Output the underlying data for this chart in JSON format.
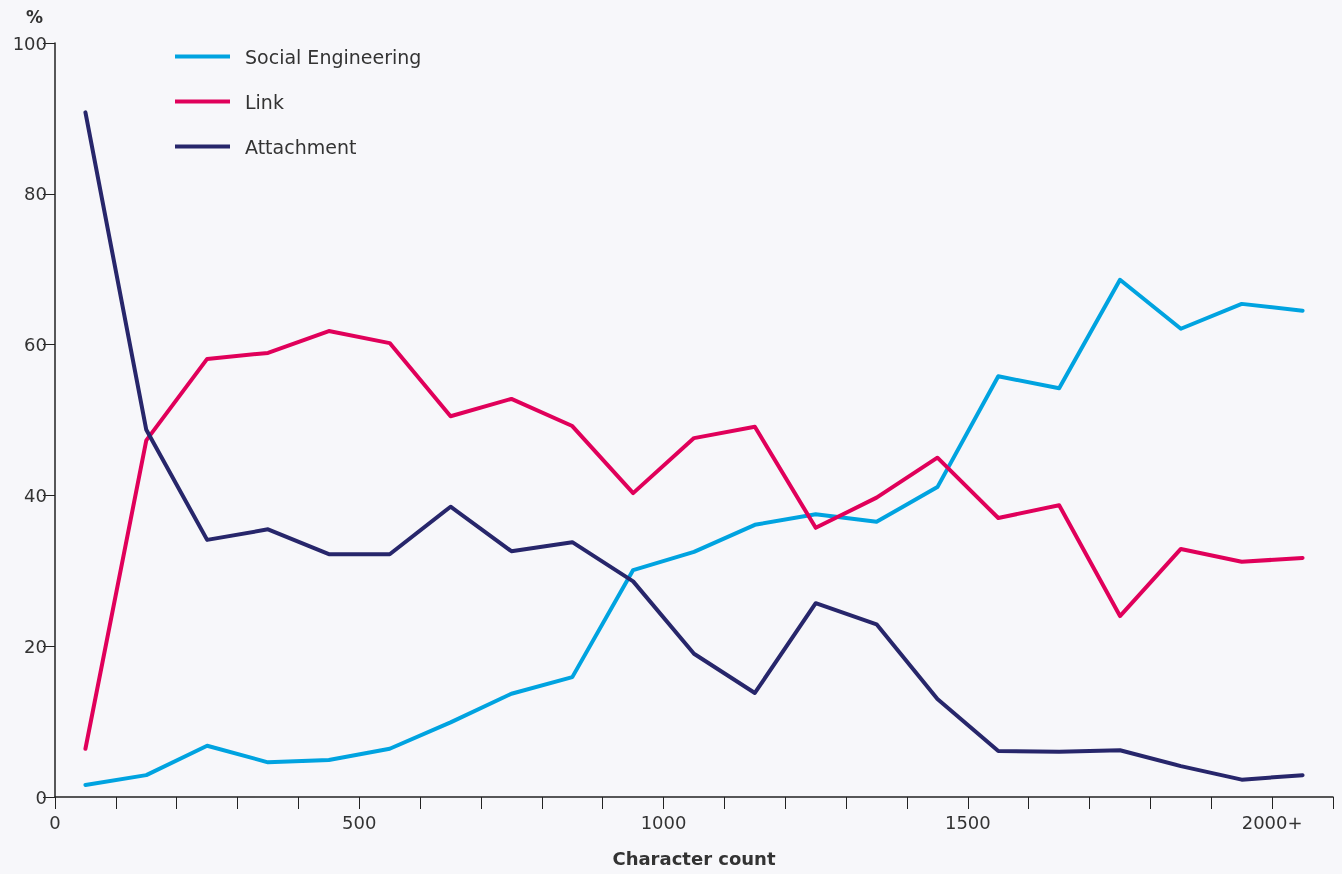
{
  "chart_data": {
    "type": "line",
    "xlabel": "Character count",
    "ylabel": "%",
    "x": [
      50,
      150,
      250,
      350,
      450,
      550,
      650,
      750,
      850,
      950,
      1050,
      1150,
      1250,
      1350,
      1450,
      1550,
      1650,
      1750,
      1850,
      1950,
      2050
    ],
    "series": [
      {
        "name": "Social Engineering",
        "color": "#00a3e0",
        "values": [
          1.6,
          2.9,
          6.8,
          4.6,
          4.9,
          6.4,
          9.9,
          13.7,
          15.9,
          30.1,
          32.5,
          36.1,
          37.5,
          36.5,
          41.1,
          55.8,
          54.2,
          68.6,
          62.1,
          65.4,
          64.5
        ]
      },
      {
        "name": "Link",
        "color": "#e0005a",
        "values": [
          6.4,
          47.3,
          58.1,
          58.9,
          61.8,
          60.2,
          50.5,
          52.8,
          49.2,
          40.3,
          47.6,
          49.1,
          35.7,
          39.7,
          45.0,
          37.0,
          38.7,
          24.0,
          32.9,
          31.2,
          31.7
        ]
      },
      {
        "name": "Attachment",
        "color": "#27266b",
        "values": [
          90.8,
          48.7,
          34.1,
          35.5,
          32.2,
          32.2,
          38.5,
          32.6,
          33.8,
          28.6,
          19.0,
          13.8,
          25.7,
          22.9,
          13.0,
          6.1,
          6.0,
          6.2,
          4.1,
          2.3,
          2.9
        ]
      }
    ],
    "xlim": [
      0,
      2100
    ],
    "xticks": [
      0,
      {
        "value": 100,
        "label": null
      },
      {
        "value": 200,
        "label": null
      },
      {
        "value": 300,
        "label": null
      },
      {
        "value": 400,
        "label": null
      },
      500,
      {
        "value": 600,
        "label": null
      },
      {
        "value": 700,
        "label": null
      },
      {
        "value": 800,
        "label": null
      },
      {
        "value": 900,
        "label": null
      },
      1000,
      {
        "value": 1100,
        "label": null
      },
      {
        "value": 1200,
        "label": null
      },
      {
        "value": 1300,
        "label": null
      },
      {
        "value": 1400,
        "label": null
      },
      1500,
      {
        "value": 1600,
        "label": null
      },
      {
        "value": 1700,
        "label": null
      },
      {
        "value": 1800,
        "label": null
      },
      {
        "value": 1900,
        "label": null
      },
      {
        "value": 2000,
        "label": "2000+"
      },
      {
        "value": 2100,
        "label": null
      }
    ],
    "ylim": [
      0,
      100
    ],
    "yticks": [
      0,
      20,
      40,
      60,
      80,
      100
    ],
    "grid": false,
    "legend": "top left",
    "marker": "none",
    "line_style": "solid"
  }
}
